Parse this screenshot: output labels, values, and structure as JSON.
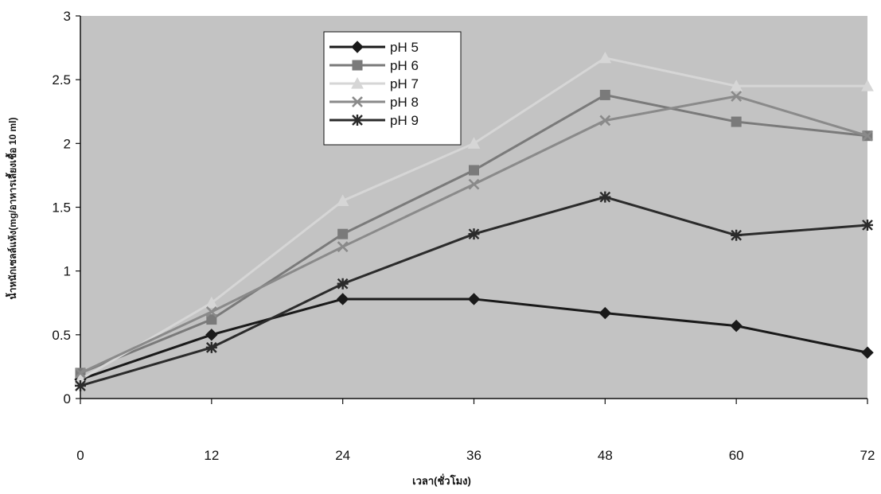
{
  "chart_data": {
    "type": "line",
    "title": "",
    "xlabel": "เวลา(ชั่วโมง)",
    "ylabel": "น้ำหนักเซลล์แห้ง(mg/อาหารเลี้ยงเชื้อ 10 ml)",
    "x": [
      0,
      12,
      24,
      36,
      48,
      60,
      72
    ],
    "xlim": [
      0,
      72
    ],
    "ylim": [
      0,
      3
    ],
    "x_ticks": [
      "0",
      "12",
      "24",
      "36",
      "48",
      "60",
      "72"
    ],
    "y_ticks": [
      "0",
      "0.5",
      "1",
      "1.5",
      "2",
      "2.5",
      "3"
    ],
    "grid": false,
    "legend_position": "top-center",
    "plot_background": "#c3c3c3",
    "series": [
      {
        "name": "pH 5",
        "values": [
          0.15,
          0.5,
          0.78,
          0.78,
          0.67,
          0.57,
          0.36
        ],
        "color": "#1a1a1a",
        "marker": "diamond"
      },
      {
        "name": "pH 6",
        "values": [
          0.2,
          0.62,
          1.29,
          1.79,
          2.38,
          2.17,
          2.06
        ],
        "color": "#7a7a7a",
        "marker": "square"
      },
      {
        "name": "pH 7",
        "values": [
          0.15,
          0.75,
          1.55,
          2.0,
          2.67,
          2.45,
          2.45
        ],
        "color": "#d6d6d6",
        "marker": "triangle"
      },
      {
        "name": "pH 8",
        "values": [
          0.2,
          0.68,
          1.19,
          1.68,
          2.18,
          2.37,
          2.06
        ],
        "color": "#8a8a8a",
        "marker": "x"
      },
      {
        "name": "pH 9",
        "values": [
          0.1,
          0.4,
          0.9,
          1.29,
          1.58,
          1.28,
          1.36
        ],
        "color": "#2b2b2b",
        "marker": "star"
      }
    ]
  }
}
